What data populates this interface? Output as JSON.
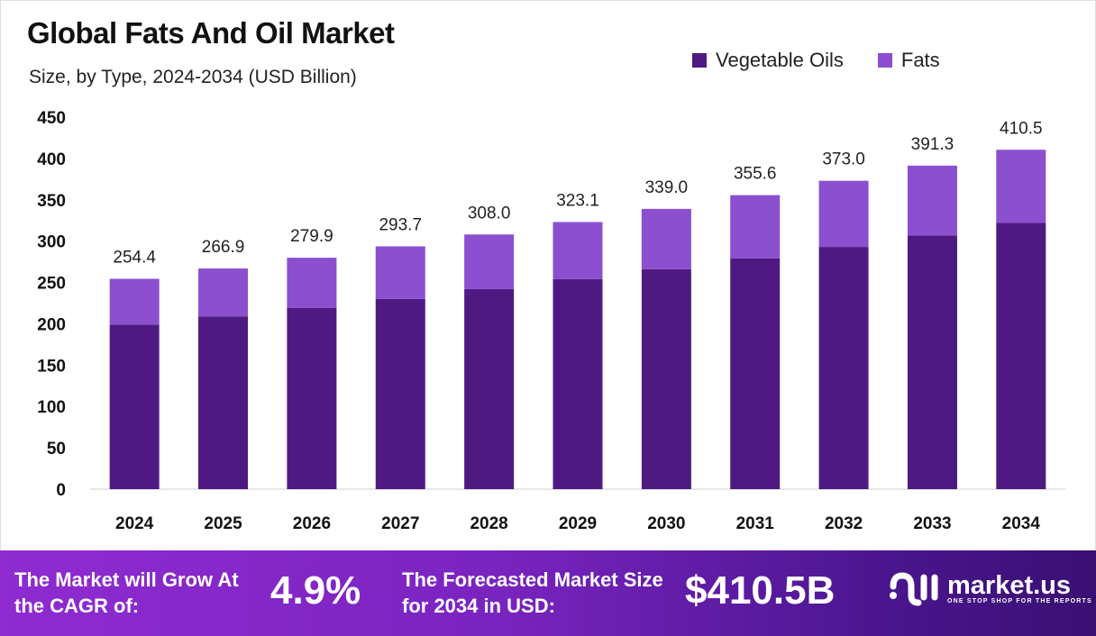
{
  "chart_data": {
    "type": "bar",
    "stacked": true,
    "title": "Global Fats And Oil Market",
    "subtitle": "Size, by Type, 2024-2034 (USD Billion)",
    "categories": [
      "2024",
      "2025",
      "2026",
      "2027",
      "2028",
      "2029",
      "2030",
      "2031",
      "2032",
      "2033",
      "2034"
    ],
    "series": [
      {
        "name": "Vegetable Oils",
        "color": "#4e1a82",
        "values": [
          199,
          209,
          219,
          230,
          242,
          254,
          266,
          279,
          293,
          307,
          322
        ]
      },
      {
        "name": "Fats",
        "color": "#8b4fcf",
        "values": [
          55.4,
          57.9,
          60.9,
          63.7,
          66.0,
          69.1,
          73.0,
          76.6,
          80.0,
          84.3,
          88.5
        ]
      }
    ],
    "totals": [
      "254.4",
      "266.9",
      "279.9",
      "293.7",
      "308.0",
      "323.1",
      "339.0",
      "355.6",
      "373.0",
      "391.3",
      "410.5"
    ],
    "ylim": [
      0,
      450
    ],
    "yticks": [
      "0",
      "50",
      "100",
      "150",
      "200",
      "250",
      "300",
      "350",
      "400",
      "450"
    ],
    "grid": false,
    "legend_position": "top-right"
  },
  "footer": {
    "cagr_label": "The Market will Grow At the CAGR of:",
    "cagr_value": "4.9%",
    "forecast_label": "The Forecasted Market Size for 2034 in USD:",
    "forecast_value": "$410.5B",
    "logo_name": "market.us",
    "logo_tagline": "ONE STOP SHOP FOR THE REPORTS"
  }
}
